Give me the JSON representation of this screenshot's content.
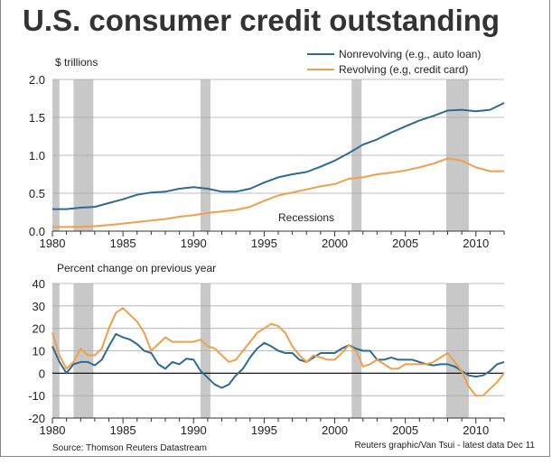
{
  "title": "U.S. consumer credit outstanding",
  "source": "Source: Thomson Reuters Datastream",
  "credit": "Reuters graphic/Van Tsui - latest data Dec 11",
  "colors": {
    "nonrevolving": "#2e6b93",
    "revolving": "#f0a04b",
    "recession": "#c8c8c8"
  },
  "chart_data": [
    {
      "type": "line",
      "ylabel": "$ trillions",
      "xlim": [
        1980,
        2012
      ],
      "ylim": [
        0,
        2.0
      ],
      "xticks": [
        "1980",
        "1985",
        "1990",
        "1995",
        "2000",
        "2005",
        "2010"
      ],
      "yticks": [
        "0.0",
        "0.5",
        "1.0",
        "1.5",
        "2.0"
      ],
      "grid": true,
      "legend_position": "top-right",
      "annotation": "Recessions",
      "recessions": [
        [
          1980.0,
          1980.5
        ],
        [
          1981.5,
          1982.9
        ],
        [
          1990.5,
          1991.2
        ],
        [
          2001.2,
          2001.9
        ],
        [
          2007.9,
          2009.5
        ]
      ],
      "x": [
        1980,
        1981,
        1982,
        1983,
        1984,
        1985,
        1986,
        1987,
        1988,
        1989,
        1990,
        1991,
        1992,
        1993,
        1994,
        1995,
        1996,
        1997,
        1998,
        1999,
        2000,
        2001,
        2002,
        2003,
        2004,
        2005,
        2006,
        2007,
        2008,
        2009,
        2010,
        2011,
        2012
      ],
      "series": [
        {
          "name": "Nonrevolving (e.g., auto loan)",
          "values": [
            0.29,
            0.29,
            0.31,
            0.32,
            0.37,
            0.42,
            0.48,
            0.51,
            0.52,
            0.56,
            0.58,
            0.56,
            0.52,
            0.52,
            0.56,
            0.64,
            0.71,
            0.75,
            0.78,
            0.85,
            0.93,
            1.03,
            1.14,
            1.21,
            1.3,
            1.38,
            1.46,
            1.52,
            1.59,
            1.6,
            1.58,
            1.6,
            1.69
          ]
        },
        {
          "name": "Revolving (e.g, credit card)",
          "values": [
            0.055,
            0.055,
            0.058,
            0.065,
            0.08,
            0.1,
            0.12,
            0.14,
            0.16,
            0.19,
            0.21,
            0.24,
            0.26,
            0.28,
            0.32,
            0.4,
            0.47,
            0.51,
            0.55,
            0.59,
            0.62,
            0.69,
            0.71,
            0.75,
            0.77,
            0.8,
            0.84,
            0.89,
            0.96,
            0.93,
            0.84,
            0.79,
            0.79
          ]
        }
      ]
    },
    {
      "type": "line",
      "ylabel": "Percent change on previous year",
      "xlim": [
        1980,
        2012
      ],
      "ylim": [
        -20,
        40
      ],
      "xticks": [
        "1980",
        "1985",
        "1990",
        "1995",
        "2000",
        "2005",
        "2010"
      ],
      "yticks": [
        "-20",
        "-10",
        "0",
        "10",
        "20",
        "30",
        "40"
      ],
      "grid": true,
      "recessions": [
        [
          1980.0,
          1980.5
        ],
        [
          1981.5,
          1982.9
        ],
        [
          1990.5,
          1991.2
        ],
        [
          2001.2,
          2001.9
        ],
        [
          2007.9,
          2009.5
        ]
      ],
      "x": [
        1980,
        1980.5,
        1981,
        1981.5,
        1982,
        1982.5,
        1983,
        1983.5,
        1984,
        1984.5,
        1985,
        1985.5,
        1986,
        1986.5,
        1987,
        1987.5,
        1988,
        1988.5,
        1989,
        1989.5,
        1990,
        1990.5,
        1991,
        1991.5,
        1992,
        1992.5,
        1993,
        1993.5,
        1994,
        1994.5,
        1995,
        1995.5,
        1996,
        1996.5,
        1997,
        1997.5,
        1998,
        1998.5,
        1999,
        1999.5,
        2000,
        2000.5,
        2001,
        2001.5,
        2002,
        2002.5,
        2003,
        2003.5,
        2004,
        2004.5,
        2005,
        2005.5,
        2006,
        2006.5,
        2007,
        2007.5,
        2008,
        2008.5,
        2009,
        2009.5,
        2010,
        2010.5,
        2011,
        2011.5,
        2012
      ],
      "series": [
        {
          "name": "Nonrevolving (e.g., auto loan)",
          "values": [
            12,
            5,
            0,
            4,
            5,
            5,
            3.5,
            6,
            12,
            17.5,
            16,
            15,
            13,
            10,
            9,
            4,
            2,
            5,
            4,
            6.5,
            6,
            1,
            -2,
            -5,
            -6.5,
            -5,
            -1,
            2,
            7,
            11,
            13.5,
            12,
            10,
            9,
            9,
            6,
            5,
            7,
            9,
            9,
            9,
            11,
            12.5,
            11,
            10,
            10,
            6,
            6,
            7,
            6,
            6,
            6,
            5,
            4,
            3.5,
            4,
            4,
            3,
            1,
            -1,
            -1.5,
            -1,
            1,
            4,
            5
          ]
        },
        {
          "name": "Revolving (e.g, credit card)",
          "values": [
            18,
            8,
            2,
            5,
            11,
            8,
            8,
            11,
            20,
            27,
            29,
            26,
            23,
            18,
            10,
            13,
            16,
            14,
            14,
            14,
            14,
            15,
            12,
            11,
            8,
            5,
            6,
            10,
            14,
            18,
            20,
            22,
            21,
            18,
            12,
            8,
            5,
            8,
            7,
            6,
            6,
            9,
            12.5,
            10,
            3,
            4,
            6,
            4,
            2,
            2,
            4,
            4,
            4,
            4,
            5,
            7,
            9,
            5,
            1,
            -6,
            -10,
            -10,
            -7,
            -4,
            0
          ]
        }
      ]
    }
  ]
}
